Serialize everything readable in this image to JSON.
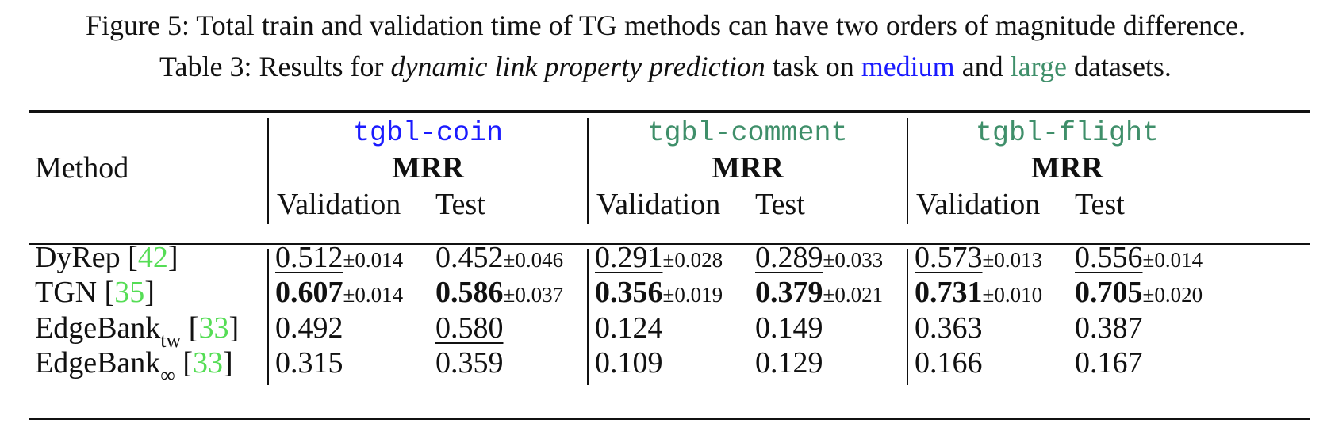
{
  "caption": {
    "figure_line": "Figure 5: Total train and validation time of TG methods can have two orders of magnitude difference.",
    "table_prefix": "Table 3: Results for ",
    "table_task": "dynamic link property prediction",
    "table_mid": " task on ",
    "table_medium": "medium",
    "table_and": " and ",
    "table_large": "large",
    "table_suffix": " datasets."
  },
  "colors": {
    "medium": "#1a1aff",
    "large": "#3f8f6a",
    "citation": "#55dd55",
    "text": "#111111"
  },
  "table": {
    "method_header": "Method",
    "metric": "MRR",
    "split_val": "Validation",
    "split_test": "Test",
    "datasets": [
      "tgbl-coin",
      "tgbl-comment",
      "tgbl-flight"
    ],
    "rows": [
      {
        "name": "DyRep",
        "sub": "",
        "cite": "42",
        "cells": [
          {
            "v": "0.512",
            "pm": "±0.014",
            "style": "underline"
          },
          {
            "v": "0.452",
            "pm": "±0.046",
            "style": "normal"
          },
          {
            "v": "0.291",
            "pm": "±0.028",
            "style": "underline"
          },
          {
            "v": "0.289",
            "pm": "±0.033",
            "style": "underline"
          },
          {
            "v": "0.573",
            "pm": "±0.013",
            "style": "underline"
          },
          {
            "v": "0.556",
            "pm": "±0.014",
            "style": "underline"
          }
        ]
      },
      {
        "name": "TGN",
        "sub": "",
        "cite": "35",
        "cells": [
          {
            "v": "0.607",
            "pm": "±0.014",
            "style": "bold"
          },
          {
            "v": "0.586",
            "pm": "±0.037",
            "style": "bold"
          },
          {
            "v": "0.356",
            "pm": "±0.019",
            "style": "bold"
          },
          {
            "v": "0.379",
            "pm": "±0.021",
            "style": "bold"
          },
          {
            "v": "0.731",
            "pm": "±0.010",
            "style": "bold"
          },
          {
            "v": "0.705",
            "pm": "±0.020",
            "style": "bold"
          }
        ]
      },
      {
        "name": "EdgeBank",
        "sub": "tw",
        "cite": "33",
        "cells": [
          {
            "v": "0.492",
            "pm": "",
            "style": "normal"
          },
          {
            "v": "0.580",
            "pm": "",
            "style": "underline"
          },
          {
            "v": "0.124",
            "pm": "",
            "style": "normal"
          },
          {
            "v": "0.149",
            "pm": "",
            "style": "normal"
          },
          {
            "v": "0.363",
            "pm": "",
            "style": "normal"
          },
          {
            "v": "0.387",
            "pm": "",
            "style": "normal"
          }
        ]
      },
      {
        "name": "EdgeBank",
        "sub": "∞",
        "cite": "33",
        "cells": [
          {
            "v": "0.315",
            "pm": "",
            "style": "normal"
          },
          {
            "v": "0.359",
            "pm": "",
            "style": "normal"
          },
          {
            "v": "0.109",
            "pm": "",
            "style": "normal"
          },
          {
            "v": "0.129",
            "pm": "",
            "style": "normal"
          },
          {
            "v": "0.166",
            "pm": "",
            "style": "normal"
          },
          {
            "v": "0.167",
            "pm": "",
            "style": "normal"
          }
        ]
      }
    ]
  }
}
